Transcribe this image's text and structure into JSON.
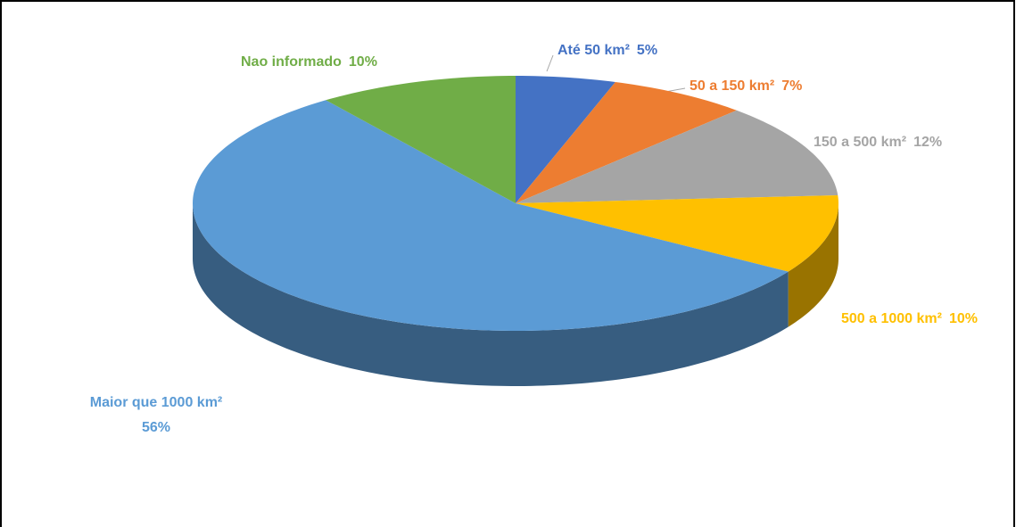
{
  "chart_data": {
    "type": "pie",
    "categories": [
      "Até 50 km²",
      "50 a 150 km²",
      "150 a 500 km²",
      "500 a 1000 km²",
      "Maior que 1000 km²",
      "Nao informado"
    ],
    "values": [
      5,
      7,
      12,
      10,
      56,
      10
    ],
    "value_labels": [
      "5%",
      "7%",
      "12%",
      "10%",
      "56%",
      "10%"
    ],
    "colors": [
      "#4472c4",
      "#ed7d31",
      "#a5a5a5",
      "#ffc000",
      "#5b9bd5",
      "#70ad47"
    ]
  }
}
